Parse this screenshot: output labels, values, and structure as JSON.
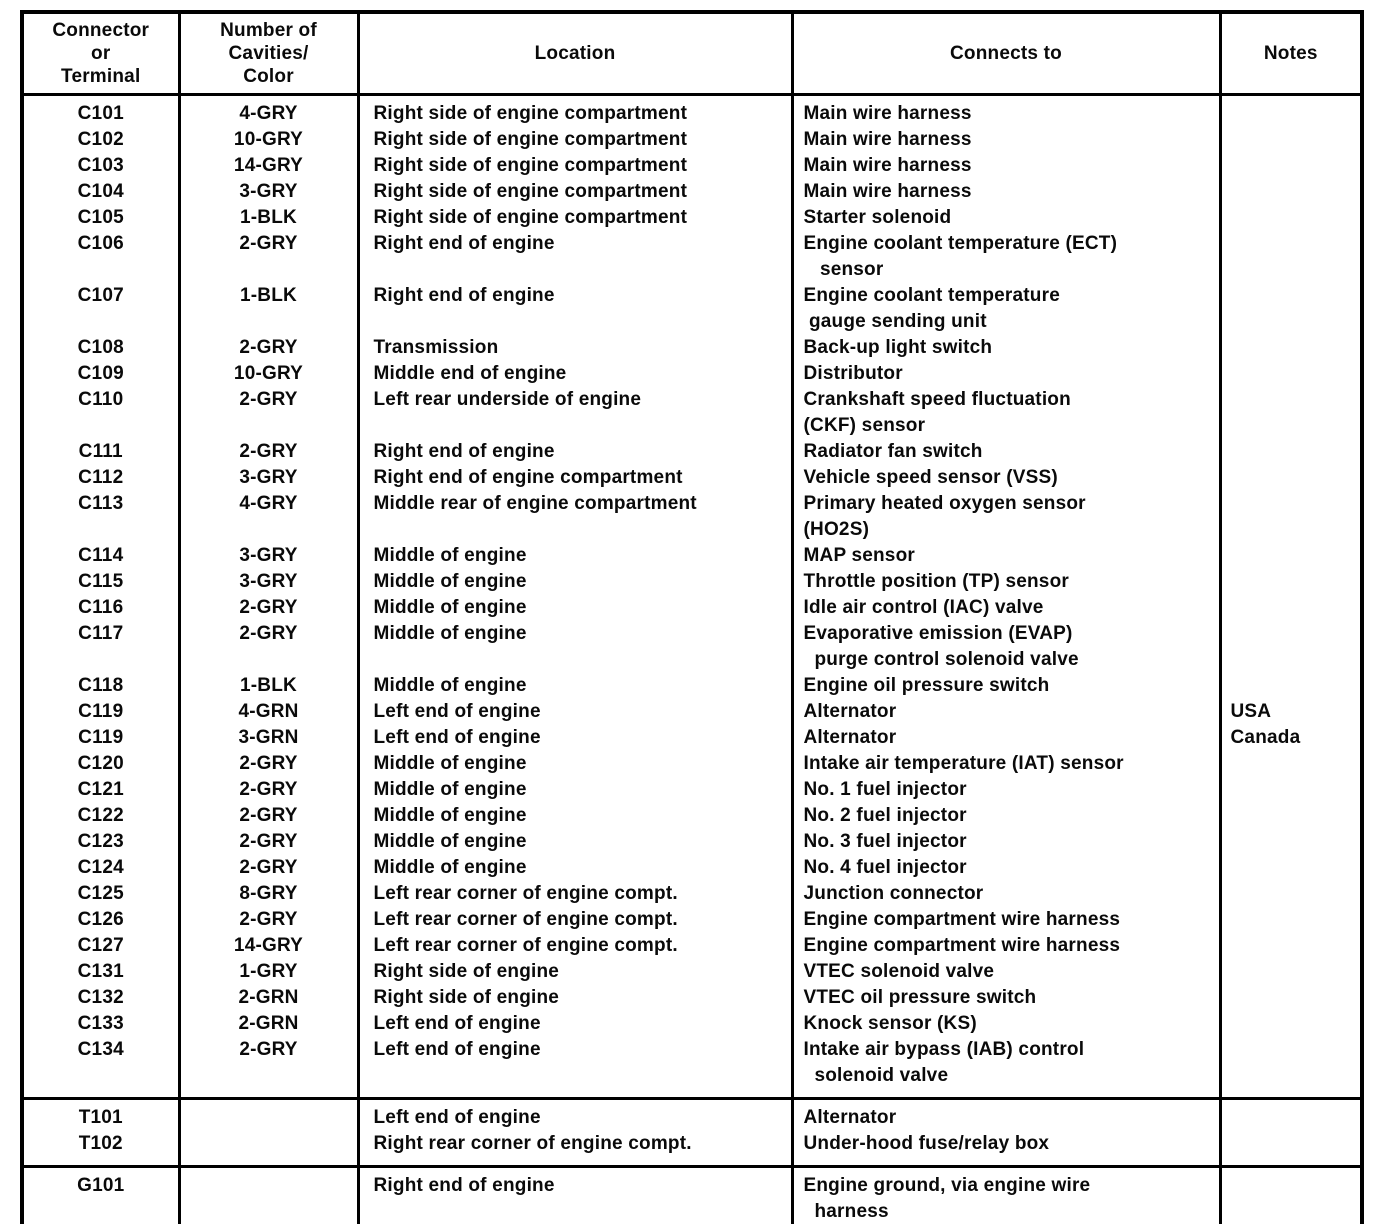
{
  "table": {
    "headers": [
      "Connector\nor\nTerminal",
      "Number of\nCavities/\nColor",
      "Location",
      "Connects to",
      "Notes"
    ],
    "column_keys": [
      "connector",
      "cavities",
      "location",
      "connects_to",
      "notes"
    ],
    "sections": [
      {
        "name": "connectors",
        "rows": [
          {
            "connector": "C101",
            "cavities": "4-GRY",
            "location": "Right side of engine compartment",
            "connects_to": "Main wire harness",
            "notes": ""
          },
          {
            "connector": "C102",
            "cavities": "10-GRY",
            "location": "Right side of engine compartment",
            "connects_to": "Main wire harness",
            "notes": ""
          },
          {
            "connector": "C103",
            "cavities": "14-GRY",
            "location": "Right side of engine compartment",
            "connects_to": "Main wire harness",
            "notes": ""
          },
          {
            "connector": "C104",
            "cavities": "3-GRY",
            "location": "Right side of engine compartment",
            "connects_to": "Main wire harness",
            "notes": ""
          },
          {
            "connector": "C105",
            "cavities": "1-BLK",
            "location": "Right side of engine compartment",
            "connects_to": "Starter solenoid",
            "notes": ""
          },
          {
            "connector": "C106",
            "cavities": "2-GRY",
            "location": "Right end of engine",
            "connects_to": "Engine coolant temperature (ECT)\n   sensor",
            "notes": ""
          },
          {
            "connector": "C107",
            "cavities": "1-BLK",
            "location": "Right end of engine",
            "connects_to": "Engine coolant temperature\n gauge sending unit",
            "notes": ""
          },
          {
            "connector": "C108",
            "cavities": "2-GRY",
            "location": "Transmission",
            "connects_to": "Back-up light switch",
            "notes": ""
          },
          {
            "connector": "C109",
            "cavities": "10-GRY",
            "location": "Middle end of engine",
            "connects_to": "Distributor",
            "notes": ""
          },
          {
            "connector": "C110",
            "cavities": "2-GRY",
            "location": "Left rear underside of engine",
            "connects_to": "Crankshaft speed fluctuation\n(CKF) sensor",
            "notes": ""
          },
          {
            "connector": "C111",
            "cavities": "2-GRY",
            "location": "Right end of engine",
            "connects_to": "Radiator fan switch",
            "notes": ""
          },
          {
            "connector": "C112",
            "cavities": "3-GRY",
            "location": "Right end of engine compartment",
            "connects_to": "Vehicle speed sensor (VSS)",
            "notes": ""
          },
          {
            "connector": "C113",
            "cavities": "4-GRY",
            "location": "Middle rear of engine compartment",
            "connects_to": "Primary heated oxygen sensor\n(HO2S)",
            "notes": ""
          },
          {
            "connector": "C114",
            "cavities": "3-GRY",
            "location": "Middle of engine",
            "connects_to": "MAP sensor",
            "notes": ""
          },
          {
            "connector": "C115",
            "cavities": "3-GRY",
            "location": "Middle of engine",
            "connects_to": "Throttle position (TP) sensor",
            "notes": ""
          },
          {
            "connector": "C116",
            "cavities": "2-GRY",
            "location": "Middle of engine",
            "connects_to": "Idle air control (IAC) valve",
            "notes": ""
          },
          {
            "connector": "C117",
            "cavities": "2-GRY",
            "location": "Middle of engine",
            "connects_to": "Evaporative emission (EVAP)\n  purge control solenoid valve",
            "notes": ""
          },
          {
            "connector": "C118",
            "cavities": "1-BLK",
            "location": "Middle of engine",
            "connects_to": "Engine oil pressure switch",
            "notes": ""
          },
          {
            "connector": "C119",
            "cavities": "4-GRN",
            "location": "Left end of engine",
            "connects_to": "Alternator",
            "notes": "USA"
          },
          {
            "connector": "C119",
            "cavities": "3-GRN",
            "location": "Left end of engine",
            "connects_to": "Alternator",
            "notes": "Canada"
          },
          {
            "connector": "C120",
            "cavities": "2-GRY",
            "location": "Middle of engine",
            "connects_to": "Intake air temperature (IAT) sensor",
            "notes": ""
          },
          {
            "connector": "C121",
            "cavities": "2-GRY",
            "location": "Middle of engine",
            "connects_to": "No. 1 fuel injector",
            "notes": ""
          },
          {
            "connector": "C122",
            "cavities": "2-GRY",
            "location": "Middle of engine",
            "connects_to": "No. 2 fuel injector",
            "notes": ""
          },
          {
            "connector": "C123",
            "cavities": "2-GRY",
            "location": "Middle of engine",
            "connects_to": "No. 3 fuel injector",
            "notes": ""
          },
          {
            "connector": "C124",
            "cavities": "2-GRY",
            "location": "Middle of engine",
            "connects_to": "No. 4 fuel injector",
            "notes": ""
          },
          {
            "connector": "C125",
            "cavities": "8-GRY",
            "location": "Left rear corner of engine compt.",
            "connects_to": "Junction connector",
            "notes": ""
          },
          {
            "connector": "C126",
            "cavities": "2-GRY",
            "location": "Left rear corner of engine compt.",
            "connects_to": "Engine compartment wire harness",
            "notes": ""
          },
          {
            "connector": "C127",
            "cavities": "14-GRY",
            "location": "Left rear corner of engine compt.",
            "connects_to": "Engine compartment wire harness",
            "notes": ""
          },
          {
            "connector": "C131",
            "cavities": "1-GRY",
            "location": "Right side of engine",
            "connects_to": "VTEC solenoid valve",
            "notes": ""
          },
          {
            "connector": "C132",
            "cavities": "2-GRN",
            "location": "Right side of engine",
            "connects_to": "VTEC oil pressure switch",
            "notes": ""
          },
          {
            "connector": "C133",
            "cavities": "2-GRN",
            "location": "Left end of engine",
            "connects_to": "Knock sensor (KS)",
            "notes": ""
          },
          {
            "connector": "C134",
            "cavities": "2-GRY",
            "location": "Left end of engine",
            "connects_to": "Intake air bypass (IAB) control\n  solenoid valve",
            "notes": ""
          }
        ]
      },
      {
        "name": "terminals",
        "rows": [
          {
            "connector": "T101",
            "cavities": "",
            "location": "Left end of engine",
            "connects_to": "Alternator",
            "notes": ""
          },
          {
            "connector": "T102",
            "cavities": "",
            "location": "Right rear corner of engine compt.",
            "connects_to": "Under-hood fuse/relay box",
            "notes": ""
          }
        ]
      },
      {
        "name": "grounds",
        "rows": [
          {
            "connector": "G101",
            "cavities": "",
            "location": "Right end of engine",
            "connects_to": "Engine ground, via engine wire\n  harness",
            "notes": ""
          }
        ]
      }
    ]
  }
}
